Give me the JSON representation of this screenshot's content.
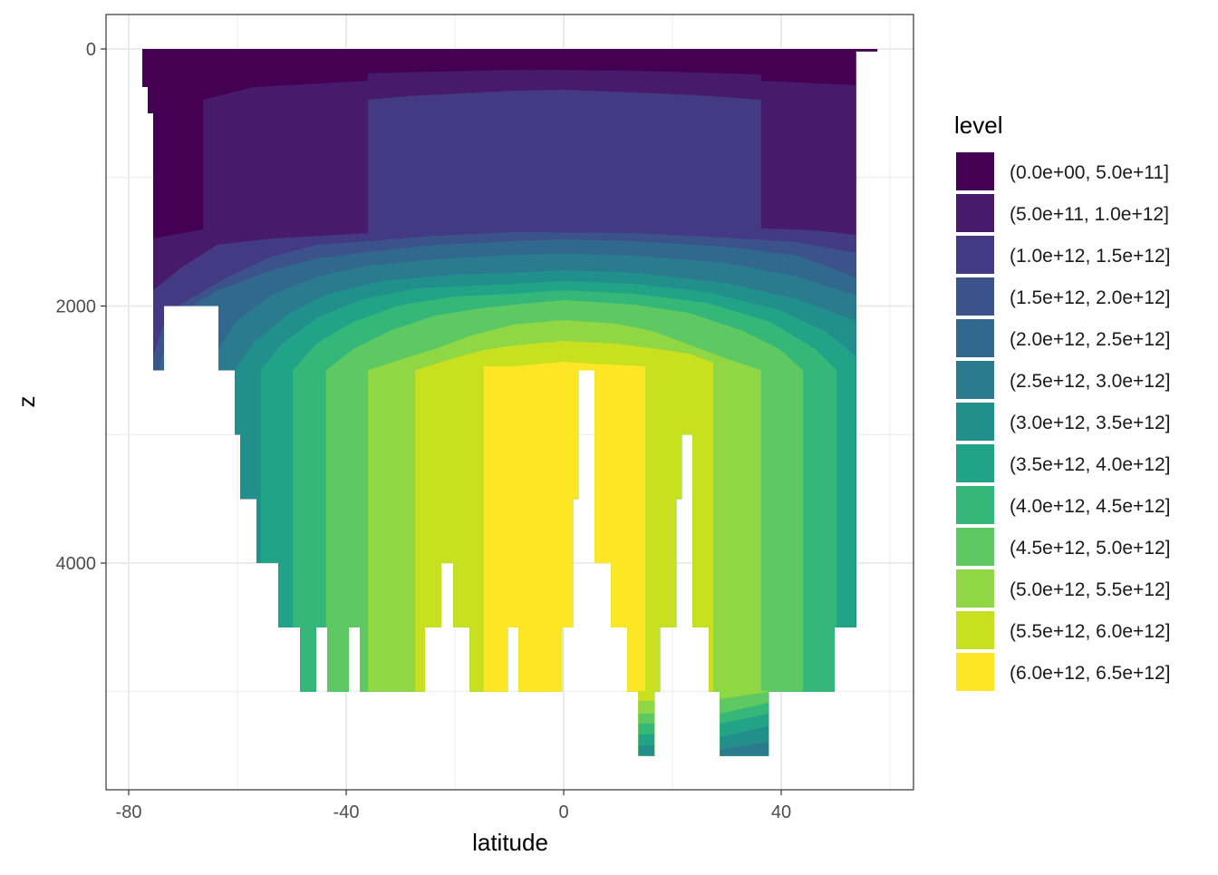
{
  "chart_data": {
    "type": "filled-contour",
    "xlabel": "latitude",
    "ylabel": "z",
    "xlim": [
      -84,
      64.5
    ],
    "ylim": [
      5760,
      -270
    ],
    "x_ticks": [
      -80,
      -40,
      0,
      40
    ],
    "x_tick_labels": [
      "-80",
      "-40",
      "0",
      "40"
    ],
    "x_minor": [
      -60,
      -20,
      20,
      60
    ],
    "y_ticks": [
      0,
      2000,
      4000
    ],
    "y_tick_labels": [
      "0",
      "2000",
      "4000"
    ],
    "y_minor": [
      1000,
      3000,
      5000
    ],
    "grid": true,
    "legend": {
      "title": "level",
      "position": "right",
      "entries": [
        {
          "label": "(0.0e+00, 5.0e+11]",
          "color": "#440154"
        },
        {
          "label": "(5.0e+11, 1.0e+12]",
          "color": "#481a6c"
        },
        {
          "label": "(1.0e+12, 1.5e+12]",
          "color": "#443a83"
        },
        {
          "label": "(1.5e+12, 2.0e+12]",
          "color": "#3b528b"
        },
        {
          "label": "(2.0e+12, 2.5e+12]",
          "color": "#31688e"
        },
        {
          "label": "(2.5e+12, 3.0e+12]",
          "color": "#2a7b8e"
        },
        {
          "label": "(3.0e+12, 3.5e+12]",
          "color": "#21908c"
        },
        {
          "label": "(3.5e+12, 4.0e+12]",
          "color": "#20a386"
        },
        {
          "label": "(4.0e+12, 4.5e+12]",
          "color": "#35b779"
        },
        {
          "label": "(4.5e+12, 5.0e+12]",
          "color": "#5ec962"
        },
        {
          "label": "(5.0e+12, 5.5e+12]",
          "color": "#8fd744"
        },
        {
          "label": "(5.5e+12, 6.0e+12]",
          "color": "#c8e020"
        },
        {
          "label": "(6.0e+12, 6.5e+12]",
          "color": "#fde725"
        }
      ]
    },
    "bathymetry": [
      [
        -77.5,
        -76.5,
        296
      ],
      [
        -76.5,
        -75.5,
        501
      ],
      [
        -75.5,
        -73.5,
        2500
      ],
      [
        -73.5,
        -63.5,
        2000
      ],
      [
        -63.5,
        -60.5,
        2500
      ],
      [
        -60.5,
        -59.5,
        3000
      ],
      [
        -59.5,
        -56.5,
        3500
      ],
      [
        -56.5,
        -52.5,
        4000
      ],
      [
        -52.5,
        -48.5,
        4500
      ],
      [
        -48.5,
        -45.5,
        5000
      ],
      [
        -45.5,
        -43.5,
        4500
      ],
      [
        -43.5,
        -39.5,
        5000
      ],
      [
        -39.5,
        -37.5,
        4500
      ],
      [
        -37.5,
        -25.5,
        5000
      ],
      [
        -25.5,
        -22.5,
        4500
      ],
      [
        -22.5,
        -20.3,
        4000
      ],
      [
        -20.3,
        -17.3,
        4500
      ],
      [
        -17.3,
        -10.3,
        5000
      ],
      [
        -10.3,
        -8.3,
        4500
      ],
      [
        -8.3,
        -0.3,
        5000
      ],
      [
        -0.3,
        1.7,
        4500
      ],
      [
        1.7,
        2.7,
        3500
      ],
      [
        2.7,
        5.7,
        2500
      ],
      [
        5.7,
        8.7,
        4000
      ],
      [
        8.7,
        11.7,
        4500
      ],
      [
        11.7,
        13.7,
        5000
      ],
      [
        13.7,
        16.7,
        5500
      ],
      [
        16.7,
        17.7,
        5000
      ],
      [
        17.7,
        20.7,
        4500
      ],
      [
        20.7,
        21.7,
        3500
      ],
      [
        21.7,
        23.7,
        3000
      ],
      [
        23.7,
        26.7,
        4500
      ],
      [
        26.7,
        28.7,
        5000
      ],
      [
        28.7,
        37.7,
        5500
      ],
      [
        37.7,
        49.8,
        5000
      ],
      [
        49.8,
        53.8,
        4500
      ],
      [
        53.8,
        57.7,
        20
      ]
    ],
    "level_regions": [
      {
        "level": 1,
        "boundary": [
          [
            -78,
            0
          ],
          [
            58,
            0
          ]
        ]
      },
      {
        "level": 2,
        "boundary": [
          [
            -75.5,
            1474
          ],
          [
            -66.3,
            1404
          ],
          [
            -66.3,
            395
          ],
          [
            -57,
            296
          ],
          [
            -36,
            247
          ],
          [
            -36,
            190
          ],
          [
            -9.2,
            162
          ],
          [
            13,
            169
          ],
          [
            36.3,
            198
          ],
          [
            36.3,
            247
          ],
          [
            53.8,
            282
          ]
        ]
      },
      {
        "level": 3,
        "boundary": [
          [
            -75.5,
            1877
          ],
          [
            -70.3,
            1700
          ],
          [
            -63.7,
            1524
          ],
          [
            -53.7,
            1474
          ],
          [
            -36,
            1432
          ],
          [
            -36,
            395
          ],
          [
            -28.7,
            367
          ],
          [
            -9.2,
            325
          ],
          [
            0,
            317
          ],
          [
            13,
            339
          ],
          [
            24.7,
            360
          ],
          [
            36.3,
            395
          ],
          [
            36.3,
            1397
          ],
          [
            46.3,
            1411
          ],
          [
            53.8,
            1446
          ]
        ]
      },
      {
        "level": 4,
        "boundary": [
          [
            -75.5,
            2392
          ],
          [
            -73.7,
            2159
          ],
          [
            -70.3,
            1982
          ],
          [
            -62,
            1779
          ],
          [
            -53.7,
            1615
          ],
          [
            -45.3,
            1524
          ],
          [
            -36,
            1496
          ],
          [
            -23.7,
            1453
          ],
          [
            -9.2,
            1425
          ],
          [
            13,
            1432
          ],
          [
            29.7,
            1467
          ],
          [
            43,
            1503
          ],
          [
            53.8,
            1587
          ]
        ]
      },
      {
        "level": 5,
        "boundary": [
          [
            -74.5,
            2500
          ],
          [
            -72.8,
            2229
          ],
          [
            -70.3,
            2053
          ],
          [
            -63.7,
            1877
          ],
          [
            -53.7,
            1721
          ],
          [
            -45.3,
            1630
          ],
          [
            -36,
            1580
          ],
          [
            -23.7,
            1524
          ],
          [
            -9.2,
            1496
          ],
          [
            0,
            1481
          ],
          [
            13,
            1496
          ],
          [
            29.7,
            1538
          ],
          [
            43,
            1608
          ],
          [
            53.8,
            1778
          ]
        ]
      },
      {
        "level": 6,
        "boundary": [
          [
            -63.5,
            2335
          ],
          [
            -60.3,
            2123
          ],
          [
            -53.7,
            1912
          ],
          [
            -45.3,
            1771
          ],
          [
            -36,
            1686
          ],
          [
            -23.7,
            1637
          ],
          [
            -9.2,
            1601
          ],
          [
            0,
            1594
          ],
          [
            13,
            1608
          ],
          [
            29.7,
            1665
          ],
          [
            43,
            1771
          ],
          [
            53.8,
            1919
          ]
        ]
      },
      {
        "level": 7,
        "boundary": [
          [
            -60.5,
            2500
          ],
          [
            -57,
            2286
          ],
          [
            -50.3,
            2053
          ],
          [
            -43.7,
            1912
          ],
          [
            -33.7,
            1806
          ],
          [
            -20.3,
            1757
          ],
          [
            -9.2,
            1742
          ],
          [
            0,
            1721
          ],
          [
            13,
            1742
          ],
          [
            29.7,
            1820
          ],
          [
            43,
            1947
          ],
          [
            53.8,
            2116
          ]
        ]
      },
      {
        "level": 8,
        "boundary": [
          [
            -55.7,
            2500
          ],
          [
            -52,
            2300
          ],
          [
            -45.3,
            2088
          ],
          [
            -37,
            1947
          ],
          [
            -27,
            1862
          ],
          [
            -9.2,
            1827
          ],
          [
            0,
            1806
          ],
          [
            13,
            1827
          ],
          [
            26.3,
            1891
          ],
          [
            39.7,
            2032
          ],
          [
            48,
            2194
          ],
          [
            53.8,
            2392
          ]
        ]
      },
      {
        "level": 9,
        "boundary": [
          [
            -49.8,
            2500
          ],
          [
            -45.3,
            2286
          ],
          [
            -38.7,
            2123
          ],
          [
            -30.3,
            1996
          ],
          [
            -20.3,
            1926
          ],
          [
            -9.2,
            1905
          ],
          [
            0,
            1877
          ],
          [
            13,
            1905
          ],
          [
            26.3,
            1975
          ],
          [
            38,
            2123
          ],
          [
            46.3,
            2335
          ],
          [
            50.2,
            2500
          ]
        ]
      },
      {
        "level": 10,
        "boundary": [
          [
            -43.7,
            2500
          ],
          [
            -38.7,
            2335
          ],
          [
            -32,
            2194
          ],
          [
            -23.7,
            2074
          ],
          [
            -15.3,
            2018
          ],
          [
            -9.2,
            1989
          ],
          [
            0,
            1954
          ],
          [
            13,
            1989
          ],
          [
            23,
            2053
          ],
          [
            33,
            2194
          ],
          [
            39.7,
            2335
          ],
          [
            44,
            2500
          ]
        ]
      },
      {
        "level": 11,
        "boundary": [
          [
            -36,
            2500
          ],
          [
            -30.3,
            2420
          ],
          [
            -23.7,
            2335
          ],
          [
            -17,
            2229
          ],
          [
            -9.2,
            2145
          ],
          [
            0,
            2109
          ],
          [
            9.7,
            2138
          ],
          [
            16.3,
            2194
          ],
          [
            23,
            2300
          ],
          [
            29.7,
            2406
          ],
          [
            36.3,
            2500
          ]
        ]
      },
      {
        "level": 12,
        "boundary": [
          [
            -27.3,
            2500
          ],
          [
            -20.3,
            2406
          ],
          [
            -14.7,
            2342
          ],
          [
            -9.2,
            2307
          ],
          [
            0,
            2272
          ],
          [
            9.7,
            2293
          ],
          [
            15,
            2321
          ],
          [
            23,
            2370
          ],
          [
            27.5,
            2441
          ]
        ]
      },
      {
        "level": 13,
        "boundary": [
          [
            -14.7,
            2469
          ],
          [
            -9.2,
            2469
          ],
          [
            -3.7,
            2448
          ],
          [
            0,
            2434
          ],
          [
            4.7,
            2448
          ],
          [
            15,
            2469
          ]
        ]
      }
    ],
    "bottom_patches": [
      {
        "level": 12,
        "poly": [
          [
            13.7,
            4995
          ],
          [
            16.7,
            4995
          ],
          [
            16.7,
            5072
          ],
          [
            13.7,
            5072
          ]
        ]
      },
      {
        "level": 11,
        "poly": [
          [
            13.7,
            5072
          ],
          [
            16.7,
            5072
          ],
          [
            16.7,
            5171
          ],
          [
            13.7,
            5171
          ]
        ]
      },
      {
        "level": 10,
        "poly": [
          [
            13.7,
            5171
          ],
          [
            16.7,
            5171
          ],
          [
            16.7,
            5249
          ],
          [
            13.7,
            5249
          ]
        ]
      },
      {
        "level": 9,
        "poly": [
          [
            13.7,
            5249
          ],
          [
            16.7,
            5249
          ],
          [
            16.7,
            5333
          ],
          [
            13.7,
            5333
          ]
        ]
      },
      {
        "level": 8,
        "poly": [
          [
            13.7,
            5333
          ],
          [
            16.7,
            5333
          ],
          [
            16.7,
            5418
          ],
          [
            13.7,
            5418
          ]
        ]
      },
      {
        "level": 7,
        "poly": [
          [
            13.7,
            5418
          ],
          [
            16.7,
            5418
          ],
          [
            16.7,
            5500
          ],
          [
            13.7,
            5500
          ]
        ]
      },
      {
        "level": 11,
        "poly": [
          [
            28.7,
            4995
          ],
          [
            37.7,
            4995
          ],
          [
            37.7,
            5002
          ],
          [
            28.7,
            5058
          ]
        ]
      },
      {
        "level": 10,
        "poly": [
          [
            28.7,
            5058
          ],
          [
            37.7,
            5002
          ],
          [
            37.7,
            5086
          ],
          [
            28.7,
            5171
          ]
        ]
      },
      {
        "level": 9,
        "poly": [
          [
            28.7,
            5171
          ],
          [
            37.7,
            5086
          ],
          [
            37.7,
            5171
          ],
          [
            28.7,
            5249
          ]
        ]
      },
      {
        "level": 8,
        "poly": [
          [
            28.7,
            5249
          ],
          [
            37.7,
            5171
          ],
          [
            37.7,
            5263
          ],
          [
            28.7,
            5354
          ]
        ]
      },
      {
        "level": 7,
        "poly": [
          [
            28.7,
            5354
          ],
          [
            37.7,
            5263
          ],
          [
            37.7,
            5390
          ],
          [
            28.7,
            5446
          ]
        ]
      },
      {
        "level": 6,
        "poly": [
          [
            28.7,
            5446
          ],
          [
            37.7,
            5390
          ],
          [
            37.7,
            5500
          ],
          [
            28.7,
            5500
          ]
        ]
      }
    ]
  }
}
